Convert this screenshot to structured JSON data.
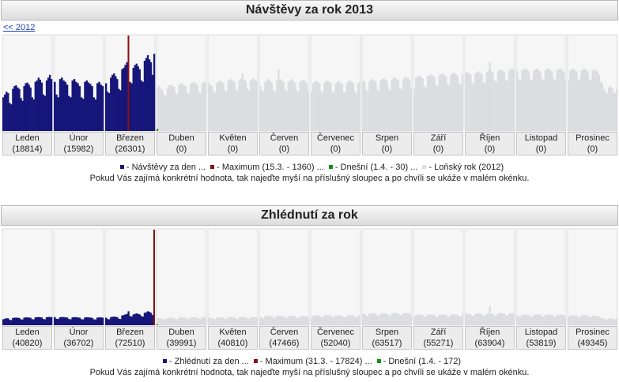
{
  "charts": [
    {
      "title": "Návštěvy za rok 2013",
      "back_link": "<< 2012",
      "last_year_color": "#dcdde1",
      "legend": [
        {
          "label": "- Návštěvy za den ...",
          "color": "#16167a"
        },
        {
          "label": "- Maximum (15.3. - 1360) ...",
          "color": "#8b1010"
        },
        {
          "label": "- Dnešní (1.4. - 30) ...",
          "color": "#109010"
        },
        {
          "label": "- Loňský rok (2012)",
          "color": "#dcdde1"
        }
      ],
      "note": "Pokud Vás zajímá konkrétní hodnota, tak najeďte myší na příslušný sloupec a po chvíli se ukáže v malém okénku.",
      "months": [
        {
          "name": "Leden",
          "total": "(18814)",
          "days": [
            480,
            520,
            560,
            540,
            400,
            380,
            600,
            640,
            650,
            620,
            600,
            470,
            430,
            640,
            680,
            690,
            660,
            620,
            480,
            450,
            700,
            720,
            760,
            730,
            690,
            520,
            500,
            720,
            760,
            800,
            740
          ]
        },
        {
          "name": "Únor",
          "total": "(15982)",
          "days": [
            700,
            520,
            480,
            740,
            760,
            720,
            700,
            660,
            500,
            480,
            720,
            740,
            700,
            680,
            640,
            480,
            460,
            700,
            720,
            690,
            670,
            640,
            480,
            450,
            680,
            700,
            660,
            640
          ]
        },
        {
          "name": "Březen",
          "total": "(26301)",
          "days": [
            680,
            560,
            540,
            760,
            800,
            820,
            780,
            740,
            600,
            580,
            880,
            900,
            940,
            980,
            1360,
            700,
            680,
            900,
            940,
            960,
            920,
            880,
            720,
            700,
            1000,
            1040,
            1080,
            1020,
            980,
            800,
            1100
          ]
        },
        {
          "name": "Duben",
          "total": "(0)",
          "days": [
            30
          ],
          "last_year": [
            620,
            640,
            600,
            580,
            520,
            500,
            610,
            650,
            660,
            640,
            630,
            540,
            520,
            660,
            680,
            670,
            650,
            640,
            550,
            530,
            670,
            690,
            700,
            680,
            660,
            560,
            540,
            680,
            700,
            690
          ]
        },
        {
          "name": "Květen",
          "total": "(0)",
          "last_year": [
            680,
            660,
            640,
            560,
            540,
            690,
            700,
            720,
            700,
            680,
            580,
            560,
            710,
            730,
            740,
            720,
            700,
            590,
            570,
            720,
            740,
            820,
            730,
            710,
            600,
            580,
            720,
            740,
            750,
            730,
            710
          ]
        },
        {
          "name": "Červen",
          "total": "(0)",
          "last_year": [
            640,
            580,
            560,
            700,
            720,
            740,
            720,
            690,
            580,
            560,
            720,
            880,
            740,
            720,
            700,
            590,
            570,
            700,
            720,
            740,
            710,
            690,
            580,
            560,
            700,
            720,
            730,
            710,
            690,
            580
          ]
        },
        {
          "name": "Červenec",
          "total": "(0)",
          "last_year": [
            560,
            680,
            700,
            720,
            700,
            680,
            570,
            550,
            690,
            710,
            720,
            700,
            680,
            560,
            540,
            680,
            700,
            710,
            690,
            670,
            560,
            540,
            690,
            710,
            720,
            700,
            680,
            560,
            540,
            690,
            700
          ]
        },
        {
          "name": "Srpen",
          "total": "(0)",
          "last_year": [
            720,
            700,
            590,
            570,
            710,
            730,
            740,
            720,
            700,
            590,
            570,
            720,
            740,
            750,
            730,
            710,
            600,
            580,
            730,
            750,
            760,
            740,
            720,
            610,
            590,
            740,
            760,
            770,
            750,
            730,
            620
          ]
        },
        {
          "name": "Září",
          "total": "(0)",
          "last_year": [
            600,
            760,
            780,
            790,
            770,
            750,
            640,
            620,
            780,
            800,
            810,
            790,
            770,
            660,
            640,
            790,
            810,
            820,
            800,
            780,
            670,
            650,
            800,
            820,
            830,
            810,
            790,
            680,
            660,
            810
          ]
        },
        {
          "name": "Říjen",
          "total": "(0)",
          "last_year": [
            830,
            840,
            820,
            800,
            690,
            670,
            820,
            840,
            850,
            830,
            810,
            700,
            680,
            840,
            860,
            980,
            850,
            830,
            720,
            700,
            850,
            870,
            880,
            860,
            840,
            730,
            710,
            860,
            880,
            890,
            870
          ]
        },
        {
          "name": "Listopad",
          "total": "(0)",
          "last_year": [
            850,
            740,
            720,
            860,
            880,
            890,
            870,
            850,
            740,
            720,
            860,
            880,
            890,
            870,
            850,
            740,
            720,
            860,
            880,
            890,
            870,
            850,
            740,
            720,
            860,
            880,
            890,
            870,
            850,
            740
          ]
        },
        {
          "name": "Prosinec",
          "total": "(0)",
          "last_year": [
            720,
            860,
            880,
            890,
            870,
            850,
            740,
            720,
            860,
            880,
            890,
            870,
            850,
            740,
            720,
            860,
            880,
            870,
            850,
            800,
            700,
            680,
            600,
            560,
            540,
            620,
            640,
            620,
            560,
            540,
            600
          ]
        }
      ]
    },
    {
      "title": "Zhlédnutí za rok",
      "last_year_color": "#dcdde1",
      "legend": [
        {
          "label": "- Zhlédnutí za den ...",
          "color": "#16167a"
        },
        {
          "label": "- Maximum (31.3. - 17824) ...",
          "color": "#8b1010"
        },
        {
          "label": "- Dnešní (1.4. - 172)",
          "color": "#109010"
        }
      ],
      "note": "Pokud Vás zajímá konkrétní hodnota, tak najeďte myší na příslušný sloupec a po chvíli se ukáže v malém okénku.",
      "months": [
        {
          "name": "Leden",
          "total": "(40820)",
          "days": [
            1100,
            1200,
            1300,
            1280,
            1000,
            950,
            1350,
            1400,
            1420,
            1380,
            1340,
            1100,
            1050,
            1400,
            1450,
            1460,
            1420,
            1380,
            1120,
            1080,
            1460,
            1500,
            1520,
            1480,
            1440,
            1150,
            1100,
            1480,
            1520,
            1550,
            1500
          ]
        },
        {
          "name": "Únor",
          "total": "(36702)",
          "days": [
            1500,
            1200,
            1150,
            1480,
            1520,
            1500,
            1460,
            1420,
            1150,
            1100,
            1460,
            1500,
            1480,
            1440,
            1400,
            1120,
            1080,
            1440,
            1480,
            1460,
            1420,
            1380,
            1100,
            1060,
            1420,
            1460,
            1440,
            1400
          ]
        },
        {
          "name": "Březen",
          "total": "(72510)",
          "days": [
            1400,
            1150,
            1100,
            1500,
            1560,
            1600,
            1560,
            1500,
            1200,
            1150,
            1800,
            1900,
            2000,
            2100,
            2600,
            1700,
            1600,
            2000,
            2100,
            2200,
            2100,
            2000,
            1700,
            1600,
            2300,
            2400,
            2600,
            2500,
            2300,
            1900,
            17824
          ]
        },
        {
          "name": "Duben",
          "total": "(39991)",
          "days": [
            172
          ],
          "last_year": [
            1300,
            1350,
            1280,
            1220,
            1100,
            1050,
            1320,
            1400,
            1420,
            1380,
            1360,
            1150,
            1100,
            1420,
            1460,
            1440,
            1400,
            1380,
            1170,
            1120,
            1440,
            1480,
            1500,
            1460,
            1420,
            1190,
            1150,
            1460,
            1500,
            1480
          ]
        },
        {
          "name": "Květen",
          "total": "(40810)",
          "last_year": [
            1400,
            1380,
            1340,
            1160,
            1120,
            1420,
            1440,
            1480,
            1440,
            1400,
            1200,
            1160,
            1460,
            1500,
            1520,
            1480,
            1440,
            1220,
            1180,
            1480,
            1520,
            1560,
            1500,
            1460,
            1240,
            1200,
            1480,
            1520,
            1540,
            1500,
            1460
          ]
        },
        {
          "name": "Červen",
          "total": "(47466)",
          "last_year": [
            1500,
            1380,
            1340,
            1660,
            1700,
            1740,
            1700,
            1640,
            1380,
            1340,
            1700,
            1740,
            1760,
            1720,
            1660,
            1400,
            1360,
            1680,
            1720,
            1760,
            1700,
            1640,
            1380,
            1340,
            1660,
            1700,
            1740,
            1700,
            1640,
            1380
          ]
        },
        {
          "name": "Červenec",
          "total": "(52040)",
          "last_year": [
            1400,
            1760,
            1800,
            1840,
            1800,
            1760,
            1460,
            1420,
            1780,
            1820,
            1860,
            1820,
            1780,
            1480,
            1440,
            1760,
            1800,
            1840,
            1800,
            1760,
            1460,
            1420,
            1780,
            1820,
            1860,
            1820,
            1780,
            1480,
            1440,
            1760,
            1800
          ]
        },
        {
          "name": "Srpen",
          "total": "(63517)",
          "last_year": [
            2100,
            2060,
            1760,
            1720,
            2140,
            2180,
            2220,
            2180,
            2140,
            1800,
            1760,
            2160,
            2200,
            2240,
            2200,
            2160,
            1820,
            1780,
            2180,
            2220,
            2260,
            2220,
            2180,
            1840,
            1800,
            2200,
            2240,
            2280,
            2240,
            2200,
            1860
          ]
        },
        {
          "name": "Září",
          "total": "(55271)",
          "last_year": [
            1600,
            1900,
            1940,
            1980,
            1940,
            1900,
            1600,
            1560,
            1920,
            1960,
            2000,
            1960,
            1920,
            1620,
            1580,
            1940,
            1980,
            2020,
            1980,
            1940,
            1640,
            1600,
            1960,
            2000,
            2040,
            2000,
            1960,
            1660,
            1620,
            1980
          ]
        },
        {
          "name": "Říjen",
          "total": "(63904)",
          "last_year": [
            2100,
            2140,
            2100,
            2060,
            1760,
            1720,
            2120,
            2160,
            2200,
            2160,
            2120,
            1780,
            1740,
            2140,
            2180,
            3600,
            2180,
            2140,
            1800,
            1760,
            2160,
            2200,
            2240,
            2200,
            2160,
            1820,
            1780,
            2180,
            2220,
            2260,
            2220
          ]
        },
        {
          "name": "Listopad",
          "total": "(53819)",
          "last_year": [
            1900,
            1600,
            1560,
            1900,
            1940,
            1980,
            1940,
            1900,
            1600,
            1560,
            1920,
            1960,
            2000,
            1960,
            1920,
            1620,
            1580,
            1920,
            1960,
            2000,
            1960,
            1920,
            1620,
            1580,
            1900,
            1940,
            1980,
            1940,
            1900,
            1600
          ]
        },
        {
          "name": "Prosinec",
          "total": "(49345)",
          "last_year": [
            1560,
            1760,
            1800,
            1840,
            1800,
            1760,
            1460,
            1420,
            1780,
            1820,
            1860,
            1820,
            1780,
            1480,
            1440,
            1760,
            1800,
            1780,
            1740,
            1600,
            1400,
            1300,
            1200,
            1100,
            1050,
            1250,
            1300,
            1280,
            1150,
            1100,
            1300
          ]
        }
      ]
    }
  ]
}
